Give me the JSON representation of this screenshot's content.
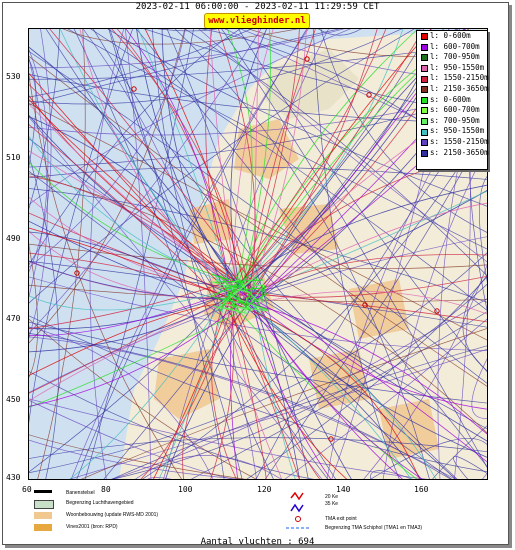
{
  "title": "2023-02-11 06:00:00 - 2023-02-11 11:29:59 CET",
  "url_badge": "www.vlieghinder.nl",
  "y_ticks": [
    "530",
    "510",
    "490",
    "470",
    "450",
    "430"
  ],
  "x_ticks": [
    "60",
    "80",
    "100",
    "120",
    "140",
    "160"
  ],
  "legend": [
    {
      "label": "l: 0-600m",
      "color": "#e00000"
    },
    {
      "label": "l: 600-700m",
      "color": "#a000e0"
    },
    {
      "label": "l: 700-950m",
      "color": "#207020"
    },
    {
      "label": "l: 950-1550m",
      "color": "#e060b0"
    },
    {
      "label": "l: 1550-2150m",
      "color": "#d02040"
    },
    {
      "label": "l: 2150-3650m",
      "color": "#803020"
    },
    {
      "label": "s: 0-600m",
      "color": "#20e020"
    },
    {
      "label": "s: 600-700m",
      "color": "#80ff40"
    },
    {
      "label": "s: 700-950m",
      "color": "#60f060"
    },
    {
      "label": "s: 950-1550m",
      "color": "#40c0c0"
    },
    {
      "label": "s: 1550-2150m",
      "color": "#6040c0"
    },
    {
      "label": "s: 2150-3650m",
      "color": "#3030a0"
    }
  ],
  "bottom_legend": {
    "runways": "Banenstelsel",
    "airport_border": "Begrenzing Luchthavengebied",
    "residential": "Woonbebouwing (update RWS-MD 2001)",
    "vinex": "Vinex2001 (bron: RPD)",
    "kw20": "20 Ke",
    "kw35": "35 Ke",
    "tma_exit": "TMA exit point",
    "tma_border": "Begrenzing TMA Schiphol  (TMA1 en TMA3)"
  },
  "flight_count": "Aantal vluchten : 694",
  "colors": {
    "sea": "#cfe0f0",
    "land": "#f2ecd8",
    "urban": "#f0c890",
    "airport": "#c8e0c8",
    "badge": "#ffff00"
  }
}
